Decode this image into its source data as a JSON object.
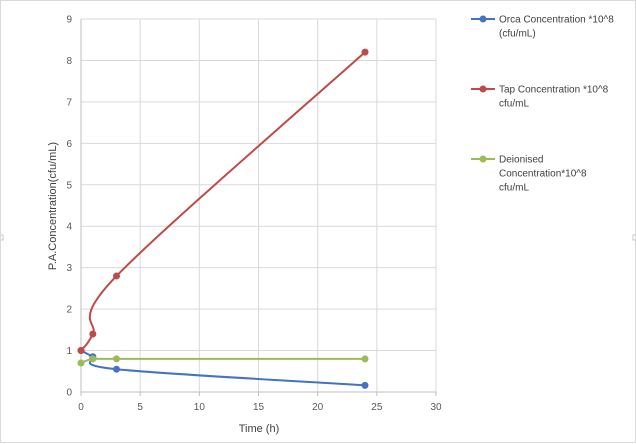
{
  "chart_data": {
    "type": "line",
    "title": "",
    "xlabel": "Time (h)",
    "ylabel": "P.A.Concentration(cfu/mL)",
    "xlim": [
      0,
      30
    ],
    "ylim": [
      0,
      9
    ],
    "xticks": [
      "0",
      "5",
      "10",
      "15",
      "20",
      "25",
      "30"
    ],
    "yticks": [
      "0",
      "1",
      "2",
      "3",
      "4",
      "5",
      "6",
      "7",
      "8",
      "9"
    ],
    "grid": true,
    "legend_position": "right",
    "series": [
      {
        "name": "Orca Concentration *10^8 (cfu/mL)",
        "legend_lines": [
          "Orca Concentration *10^8",
          "(cfu/mL)"
        ],
        "color": "#4472c4",
        "x": [
          0,
          1,
          3,
          24
        ],
        "y": [
          1.0,
          0.85,
          0.55,
          0.16
        ]
      },
      {
        "name": "Tap Concentration *10^8 cfu/mL",
        "legend_lines": [
          "Tap Concentration *10^8",
          "cfu/mL"
        ],
        "color": "#be4b48",
        "x": [
          0,
          1,
          3,
          24
        ],
        "y": [
          1.0,
          1.4,
          2.8,
          8.2
        ]
      },
      {
        "name": "Deionised Concentration*10^8 cfu/mL",
        "legend_lines": [
          "Deionised",
          "Concentration*10^8",
          "cfu/mL"
        ],
        "color": "#9bbb59",
        "x": [
          0,
          1,
          3,
          24
        ],
        "y": [
          0.7,
          0.8,
          0.8,
          0.8
        ]
      }
    ]
  }
}
